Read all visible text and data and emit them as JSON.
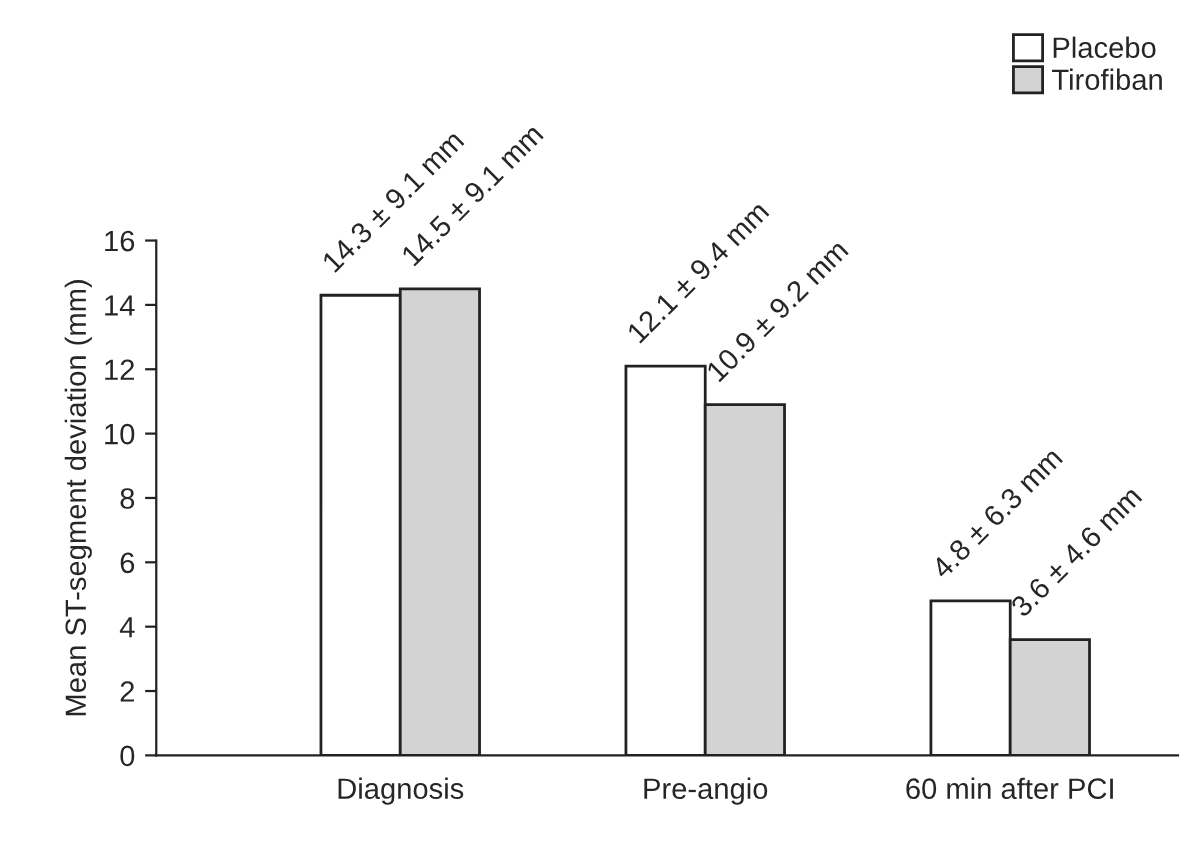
{
  "chart_data": {
    "type": "bar",
    "ylabel": "Mean ST-segment deviation (mm)",
    "categories": [
      "Diagnosis",
      "Pre-angio",
      "60 min after PCI"
    ],
    "series": [
      {
        "name": "Placebo",
        "color": "#ffffff",
        "values": [
          14.3,
          12.1,
          4.8
        ],
        "value_labels": [
          "14.3 ± 9.1 mm",
          "12.1 ± 9.4 mm",
          "4.8 ± 6.3 mm"
        ]
      },
      {
        "name": "Tirofiban",
        "color": "#d3d3d3",
        "values": [
          14.5,
          10.9,
          3.6
        ],
        "value_labels": [
          "14.5 ± 9.1 mm",
          "10.9 ± 9.2 mm",
          "3.6 ± 4.6 mm"
        ]
      }
    ],
    "ylim": [
      0,
      16
    ],
    "yticks": [
      0,
      2,
      4,
      6,
      8,
      10,
      12,
      14,
      16
    ],
    "grid": false,
    "legend": "top right"
  }
}
